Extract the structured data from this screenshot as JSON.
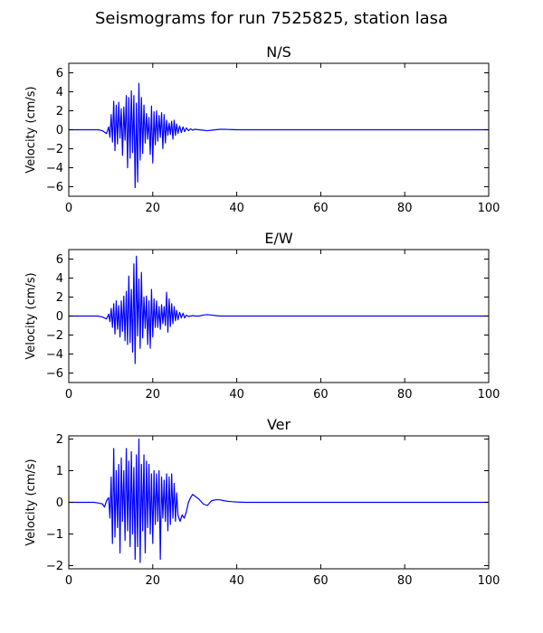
{
  "figure": {
    "title": "Seismograms for run 7525825, station lasa"
  },
  "chart_data": [
    {
      "type": "line",
      "title": "N/S",
      "xlabel": "",
      "ylabel": "Velocity (cm/s)",
      "xlim": [
        0,
        100
      ],
      "ylim": [
        -7,
        7
      ],
      "xticks": [
        0,
        20,
        40,
        60,
        80,
        100
      ],
      "yticks": [
        -6,
        -4,
        -2,
        0,
        2,
        4,
        6
      ],
      "grid": false,
      "color": "#0000ff",
      "series": [
        {
          "x": [
            0,
            7,
            8,
            9,
            9.5,
            9.8,
            10.1,
            10.4,
            10.7,
            11.0,
            11.3,
            11.6,
            11.9,
            12.2,
            12.5,
            12.8,
            13.1,
            13.4,
            13.7,
            14.0,
            14.3,
            14.6,
            14.9,
            15.2,
            15.5,
            15.8,
            16.1,
            16.4,
            16.7,
            17.0,
            17.3,
            17.6,
            17.9,
            18.2,
            18.5,
            18.8,
            19.1,
            19.4,
            19.7,
            20.0,
            20.3,
            20.6,
            20.9,
            21.2,
            21.5,
            21.8,
            22.1,
            22.4,
            22.7,
            23.0,
            23.3,
            23.6,
            23.9,
            24.2,
            24.5,
            24.8,
            25.1,
            25.4,
            25.7,
            26.0,
            26.4,
            26.8,
            27.2,
            27.6,
            28.0,
            28.5,
            29.0,
            29.5,
            30.0,
            31,
            32,
            33,
            34,
            35,
            36,
            37,
            38,
            40,
            45,
            50,
            60,
            70,
            80,
            90,
            100
          ],
          "y": [
            0,
            0,
            -0.1,
            -0.4,
            0.3,
            -0.8,
            1.6,
            -1.3,
            3.0,
            -2.2,
            2.6,
            -1.5,
            2.9,
            -0.9,
            2.2,
            -2.7,
            2.4,
            -1.1,
            3.6,
            -4.0,
            3.4,
            -3.0,
            4.1,
            -2.4,
            3.6,
            -6.1,
            2.8,
            -5.5,
            4.9,
            -3.2,
            3.4,
            -2.5,
            2.6,
            -1.4,
            1.7,
            -1.0,
            1.3,
            -2.6,
            2.5,
            -3.5,
            1.9,
            -1.6,
            2.0,
            -1.2,
            1.5,
            -0.8,
            1.8,
            -2.0,
            1.6,
            -1.4,
            1.0,
            -0.6,
            0.7,
            -0.5,
            0.9,
            -1.0,
            1.0,
            -0.6,
            0.6,
            -0.4,
            0.4,
            -0.3,
            0.3,
            -0.2,
            0.2,
            -0.1,
            0.1,
            -0.05,
            0.05,
            0,
            -0.05,
            -0.1,
            -0.05,
            0,
            0.05,
            0.05,
            0.03,
            0,
            0,
            0,
            0,
            0,
            0,
            0,
            0
          ]
        }
      ]
    },
    {
      "type": "line",
      "title": "E/W",
      "xlabel": "",
      "ylabel": "Velocity (cm/s)",
      "xlim": [
        0,
        100
      ],
      "ylim": [
        -7,
        7
      ],
      "xticks": [
        0,
        20,
        40,
        60,
        80,
        100
      ],
      "yticks": [
        -6,
        -4,
        -2,
        0,
        2,
        4,
        6
      ],
      "grid": false,
      "color": "#0000ff",
      "series": [
        {
          "x": [
            0,
            7,
            8,
            9,
            9.5,
            9.8,
            10.1,
            10.4,
            10.7,
            11.0,
            11.3,
            11.6,
            11.9,
            12.2,
            12.5,
            12.8,
            13.1,
            13.4,
            13.7,
            14.0,
            14.3,
            14.6,
            14.9,
            15.2,
            15.5,
            15.8,
            16.1,
            16.4,
            16.7,
            17.0,
            17.3,
            17.6,
            17.9,
            18.2,
            18.5,
            18.8,
            19.1,
            19.4,
            19.7,
            20.0,
            20.3,
            20.6,
            20.9,
            21.2,
            21.5,
            21.8,
            22.1,
            22.4,
            22.7,
            23.0,
            23.3,
            23.6,
            23.9,
            24.2,
            24.5,
            24.8,
            25.1,
            25.4,
            25.7,
            26.0,
            26.4,
            26.8,
            27.2,
            27.6,
            28.0,
            28.5,
            29.0,
            29.5,
            30.0,
            31,
            32,
            33,
            34,
            35,
            36,
            37,
            38,
            40,
            45,
            50,
            60,
            70,
            80,
            90,
            100
          ],
          "y": [
            0,
            0,
            -0.1,
            -0.3,
            0.2,
            -0.6,
            0.8,
            -1.2,
            1.3,
            -1.9,
            1.6,
            -1.4,
            1.1,
            -2.2,
            1.6,
            -1.6,
            2.1,
            -2.6,
            2.6,
            -3.0,
            4.2,
            -2.8,
            2.8,
            -3.8,
            5.5,
            -5.0,
            6.3,
            -2.1,
            3.9,
            -3.4,
            4.6,
            -2.3,
            2.0,
            -1.3,
            2.1,
            -3.0,
            1.6,
            -3.4,
            2.8,
            -2.2,
            1.8,
            -1.2,
            1.6,
            -1.2,
            1.0,
            -1.4,
            1.2,
            -0.8,
            1.0,
            -1.0,
            2.5,
            -1.7,
            1.8,
            -1.1,
            1.3,
            -0.8,
            1.0,
            -0.5,
            0.6,
            -0.4,
            0.4,
            -0.2,
            0.3,
            -0.2,
            0.1,
            -0.05,
            0.0,
            0.05,
            0,
            0,
            0.1,
            0.15,
            0.1,
            0.05,
            0,
            0,
            0,
            0,
            0,
            0,
            0,
            0,
            0,
            0,
            0
          ]
        }
      ]
    },
    {
      "type": "line",
      "title": "Ver",
      "xlabel": "",
      "ylabel": "Velocity (cm/s)",
      "xlim": [
        0,
        100
      ],
      "ylim": [
        -2.1,
        2.1
      ],
      "xticks": [
        0,
        20,
        40,
        60,
        80,
        100
      ],
      "yticks": [
        -2,
        -1,
        0,
        1,
        2
      ],
      "grid": false,
      "color": "#0000ff",
      "series": [
        {
          "x": [
            0,
            6,
            7,
            8,
            8.5,
            9,
            9.5,
            9.8,
            10.1,
            10.4,
            10.7,
            11.0,
            11.3,
            11.6,
            11.9,
            12.2,
            12.5,
            12.8,
            13.1,
            13.4,
            13.7,
            14.0,
            14.3,
            14.6,
            14.9,
            15.2,
            15.5,
            15.8,
            16.1,
            16.4,
            16.7,
            17.0,
            17.3,
            17.6,
            17.9,
            18.2,
            18.5,
            18.8,
            19.1,
            19.4,
            19.7,
            20.0,
            20.3,
            20.6,
            20.9,
            21.2,
            21.5,
            21.8,
            22.1,
            22.4,
            22.7,
            23.0,
            23.3,
            23.6,
            23.9,
            24.2,
            24.5,
            24.8,
            25.1,
            25.4,
            25.7,
            26.0,
            26.5,
            27.0,
            27.5,
            28.0,
            28.5,
            29.0,
            29.5,
            30.0,
            31,
            32,
            33,
            34,
            35,
            36,
            37,
            38,
            39,
            40,
            42,
            45,
            50,
            60,
            70,
            80,
            90,
            100
          ],
          "y": [
            0,
            0,
            -0.02,
            -0.05,
            -0.15,
            0.05,
            0.15,
            -0.5,
            0.8,
            -1.3,
            1.7,
            -1.1,
            1.0,
            -0.8,
            1.2,
            -1.6,
            1.4,
            -0.6,
            1.0,
            -1.2,
            1.7,
            -0.9,
            1.3,
            -1.4,
            1.6,
            -1.0,
            1.1,
            -1.8,
            1.5,
            -1.4,
            2.0,
            -1.9,
            1.2,
            -0.9,
            1.5,
            -1.6,
            1.3,
            -0.8,
            1.2,
            -1.0,
            0.9,
            -1.3,
            1.0,
            -0.7,
            0.9,
            -0.6,
            1.0,
            -1.8,
            0.8,
            -0.5,
            0.7,
            -0.6,
            0.9,
            -0.9,
            0.8,
            -0.7,
            0.9,
            -0.5,
            0.6,
            -0.6,
            0.3,
            -0.4,
            -0.6,
            -0.4,
            -0.5,
            -0.3,
            0.0,
            0.15,
            0.25,
            0.2,
            0.1,
            -0.05,
            -0.1,
            0.05,
            0.08,
            0.08,
            0.05,
            0.03,
            0.02,
            0.01,
            0.0,
            0.0,
            0.0,
            0,
            0,
            0,
            0,
            0
          ]
        }
      ]
    }
  ]
}
